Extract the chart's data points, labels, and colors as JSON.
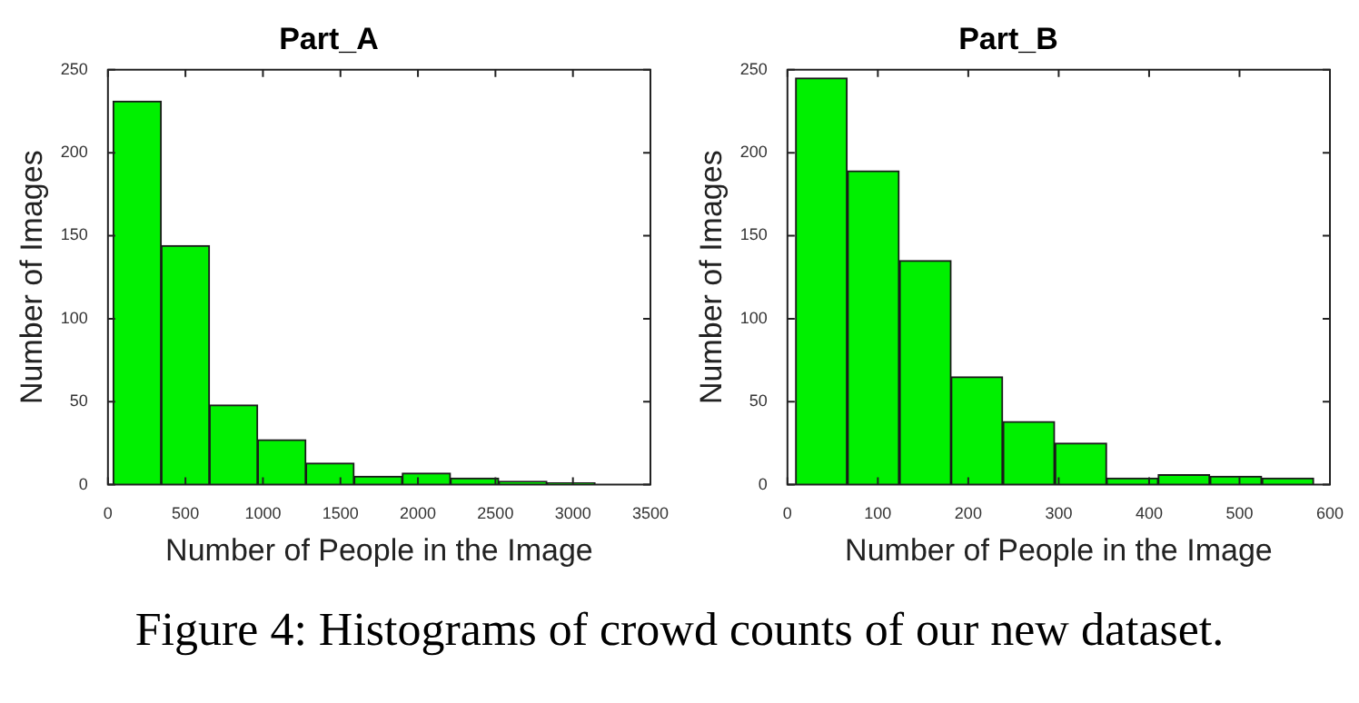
{
  "chart_data": [
    {
      "type": "histogram",
      "title": "Part_A",
      "xlabel": "Number of People in the Image",
      "ylabel": "Number of Images",
      "bins": [
        33,
        344,
        655,
        966,
        1277,
        1588,
        1899,
        2210,
        2521,
        2832,
        3143
      ],
      "values": [
        231,
        144,
        48,
        27,
        13,
        5,
        7,
        4,
        2,
        1
      ],
      "color": "#00f000",
      "xlim": [
        0,
        3500
      ],
      "xticks": [
        0,
        500,
        1000,
        1500,
        2000,
        2500,
        3000,
        3500
      ],
      "ylim": [
        0,
        250
      ],
      "yticks": [
        0,
        50,
        100,
        150,
        200,
        250
      ],
      "annotations": [
        "Figure 4: Histograms of crowd counts of our new dataset."
      ]
    },
    {
      "type": "histogram",
      "title": "Part_B",
      "xlabel": "Number of People in the Image",
      "ylabel": "Number of Images",
      "bins": [
        9,
        66,
        124,
        181,
        238,
        296,
        353,
        410,
        467,
        525,
        582
      ],
      "values": [
        245,
        189,
        135,
        65,
        38,
        25,
        4,
        6,
        5,
        4
      ],
      "color": "#00f000",
      "xlim": [
        0,
        600
      ],
      "xticks": [
        0,
        100,
        200,
        300,
        400,
        500,
        600
      ],
      "ylim": [
        0,
        250
      ],
      "yticks": [
        0,
        50,
        100,
        150,
        200,
        250
      ]
    }
  ]
}
